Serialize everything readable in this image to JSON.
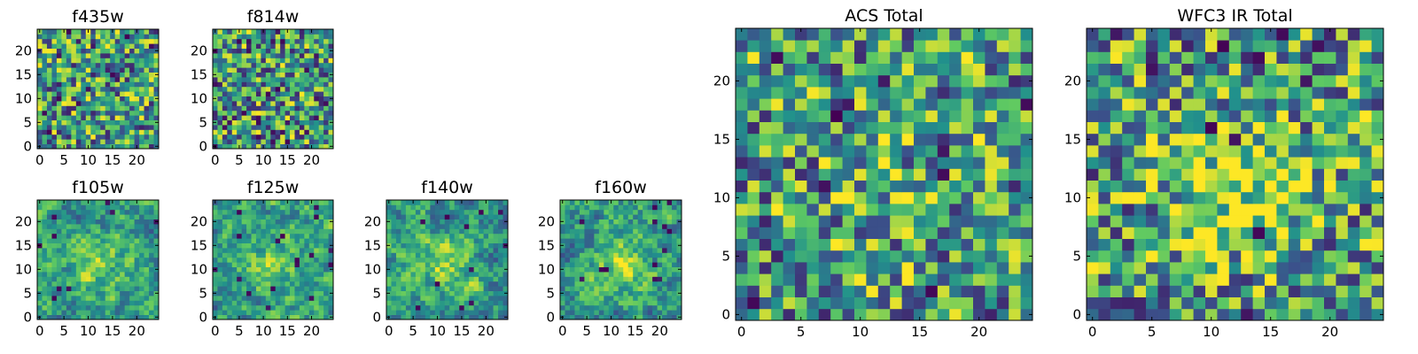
{
  "figure": {
    "description_free": true,
    "colormap_name": "viridis",
    "colormap_stops": [
      "#440154",
      "#3b528b",
      "#21918c",
      "#5ec962",
      "#fde725"
    ]
  },
  "chart_data": [
    {
      "id": "f435w",
      "type": "heatmap",
      "title": "f435w",
      "grid_size": 25,
      "xlim": [
        -0.5,
        24.5
      ],
      "ylim": [
        -0.5,
        24.5
      ],
      "xticks": [
        0,
        5,
        10,
        15,
        20
      ],
      "yticks": [
        0,
        5,
        10,
        15,
        20
      ],
      "seed": 11,
      "smooth": 0,
      "dark_rate": 0.03,
      "bright_center": 0.0,
      "values_note": "pixel intensities normalized 0-1 (noise-dominated)"
    },
    {
      "id": "f814w",
      "type": "heatmap",
      "title": "f814w",
      "grid_size": 25,
      "xlim": [
        -0.5,
        24.5
      ],
      "ylim": [
        -0.5,
        24.5
      ],
      "xticks": [
        0,
        5,
        10,
        15,
        20
      ],
      "yticks": [
        0,
        5,
        10,
        15,
        20
      ],
      "seed": 23,
      "smooth": 0,
      "dark_rate": 0.04,
      "bright_center": 0.0,
      "values_note": "pixel intensities normalized 0-1 (noise-dominated)"
    },
    {
      "id": "f105w",
      "type": "heatmap",
      "title": "f105w",
      "grid_size": 25,
      "xlim": [
        -0.5,
        24.5
      ],
      "ylim": [
        -0.5,
        24.5
      ],
      "xticks": [
        0,
        5,
        10,
        15,
        20
      ],
      "yticks": [
        0,
        5,
        10,
        15,
        20
      ],
      "seed": 37,
      "smooth": 1,
      "dark_rate": 0.015,
      "bright_center": 0.25,
      "values_note": "pixel intensities normalized 0-1"
    },
    {
      "id": "f125w",
      "type": "heatmap",
      "title": "f125w",
      "grid_size": 25,
      "xlim": [
        -0.5,
        24.5
      ],
      "ylim": [
        -0.5,
        24.5
      ],
      "xticks": [
        0,
        5,
        10,
        15,
        20
      ],
      "yticks": [
        0,
        5,
        10,
        15,
        20
      ],
      "seed": 41,
      "smooth": 1,
      "dark_rate": 0.02,
      "bright_center": 0.25,
      "values_note": "pixel intensities normalized 0-1"
    },
    {
      "id": "f140w",
      "type": "heatmap",
      "title": "f140w",
      "grid_size": 25,
      "xlim": [
        -0.5,
        24.5
      ],
      "ylim": [
        -0.5,
        24.5
      ],
      "xticks": [
        0,
        5,
        10,
        15,
        20
      ],
      "yticks": [
        0,
        5,
        10,
        15,
        20
      ],
      "seed": 53,
      "smooth": 1,
      "dark_rate": 0.02,
      "bright_center": 0.25,
      "values_note": "pixel intensities normalized 0-1"
    },
    {
      "id": "f160w",
      "type": "heatmap",
      "title": "f160w",
      "grid_size": 25,
      "xlim": [
        -0.5,
        24.5
      ],
      "ylim": [
        -0.5,
        24.5
      ],
      "xticks": [
        0,
        5,
        10,
        15,
        20
      ],
      "yticks": [
        0,
        5,
        10,
        15,
        20
      ],
      "seed": 67,
      "smooth": 1,
      "dark_rate": 0.02,
      "bright_center": 0.3,
      "values_note": "pixel intensities normalized 0-1"
    },
    {
      "id": "acs_total",
      "type": "heatmap",
      "title": "ACS Total",
      "grid_size": 25,
      "xlim": [
        -0.5,
        24.5
      ],
      "ylim": [
        -0.5,
        24.5
      ],
      "xticks": [
        0,
        5,
        10,
        15,
        20
      ],
      "yticks": [
        0,
        5,
        10,
        15,
        20
      ],
      "seed": 79,
      "smooth": 0,
      "dark_rate": 0.025,
      "bright_center": 0.1,
      "values_note": "pixel intensities normalized 0-1"
    },
    {
      "id": "wfc3_ir_total",
      "type": "heatmap",
      "title": "WFC3 IR Total",
      "grid_size": 25,
      "xlim": [
        -0.5,
        24.5
      ],
      "ylim": [
        -0.5,
        24.5
      ],
      "xticks": [
        0,
        5,
        10,
        15,
        20
      ],
      "yticks": [
        0,
        5,
        10,
        15,
        20
      ],
      "seed": 97,
      "smooth": 0,
      "dark_rate": 0.025,
      "bright_center": 0.35,
      "values_note": "pixel intensities normalized 0-1"
    }
  ]
}
